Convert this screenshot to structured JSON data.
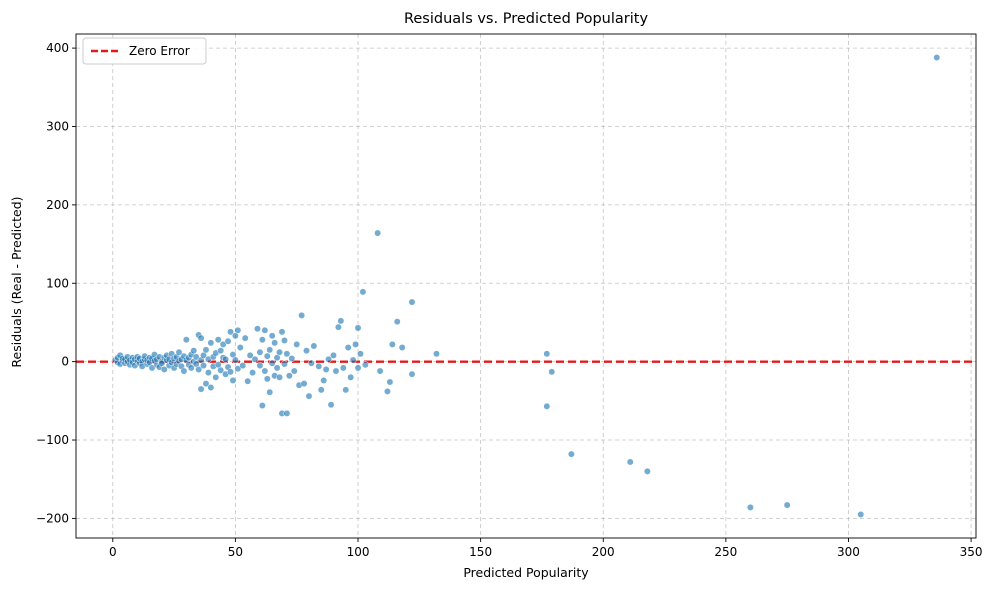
{
  "chart_data": {
    "type": "scatter",
    "title": "Residuals vs. Predicted Popularity",
    "xlabel": "Predicted Popularity",
    "ylabel": "Residuals (Real - Predicted)",
    "xlim": [
      -15,
      352
    ],
    "ylim": [
      -225,
      418
    ],
    "xticks": [
      0,
      50,
      100,
      150,
      200,
      250,
      300,
      350
    ],
    "yticks": [
      -200,
      -100,
      0,
      100,
      200,
      300,
      400
    ],
    "xtick_labels": [
      "0",
      "50",
      "100",
      "150",
      "200",
      "250",
      "300",
      "350"
    ],
    "ytick_labels": [
      "−200",
      "−100",
      "0",
      "100",
      "200",
      "300",
      "400"
    ],
    "grid": true,
    "grid_style": "dashed",
    "point_color": "#1f77b4",
    "reference_line": {
      "y": 0,
      "label": "Zero Error",
      "color": "#e41a1c",
      "style": "dashed"
    },
    "legend": {
      "position": "top-left",
      "entries": [
        "Zero Error"
      ]
    },
    "points": [
      [
        1,
        2
      ],
      [
        2,
        -1
      ],
      [
        2,
        5
      ],
      [
        3,
        8
      ],
      [
        3,
        -3
      ],
      [
        4,
        1
      ],
      [
        4,
        4
      ],
      [
        5,
        -2
      ],
      [
        5,
        3
      ],
      [
        6,
        0
      ],
      [
        6,
        6
      ],
      [
        7,
        -4
      ],
      [
        7,
        2
      ],
      [
        8,
        5
      ],
      [
        8,
        -1
      ],
      [
        9,
        3
      ],
      [
        9,
        -5
      ],
      [
        10,
        1
      ],
      [
        10,
        6
      ],
      [
        11,
        -2
      ],
      [
        11,
        4
      ],
      [
        12,
        0
      ],
      [
        12,
        -6
      ],
      [
        13,
        3
      ],
      [
        13,
        7
      ],
      [
        14,
        -3
      ],
      [
        14,
        2
      ],
      [
        15,
        5
      ],
      [
        15,
        -1
      ],
      [
        16,
        -8
      ],
      [
        16,
        4
      ],
      [
        17,
        1
      ],
      [
        17,
        9
      ],
      [
        18,
        -4
      ],
      [
        18,
        3
      ],
      [
        19,
        -7
      ],
      [
        19,
        6
      ],
      [
        20,
        0
      ],
      [
        20,
        -2
      ],
      [
        21,
        5
      ],
      [
        21,
        -10
      ],
      [
        22,
        2
      ],
      [
        22,
        8
      ],
      [
        23,
        -5
      ],
      [
        23,
        3
      ],
      [
        24,
        -1
      ],
      [
        24,
        10
      ],
      [
        25,
        -8
      ],
      [
        25,
        4
      ],
      [
        26,
        6
      ],
      [
        26,
        -3
      ],
      [
        27,
        1
      ],
      [
        27,
        12
      ],
      [
        28,
        -6
      ],
      [
        28,
        3
      ],
      [
        29,
        7
      ],
      [
        29,
        -12
      ],
      [
        30,
        2
      ],
      [
        30,
        28
      ],
      [
        31,
        -4
      ],
      [
        31,
        5
      ],
      [
        32,
        9
      ],
      [
        32,
        -8
      ],
      [
        33,
        0
      ],
      [
        33,
        14
      ],
      [
        34,
        -3
      ],
      [
        34,
        6
      ],
      [
        35,
        34
      ],
      [
        35,
        -10
      ],
      [
        36,
        2
      ],
      [
        36,
        30
      ],
      [
        36,
        -35
      ],
      [
        37,
        -5
      ],
      [
        37,
        8
      ],
      [
        38,
        -28
      ],
      [
        38,
        15
      ],
      [
        39,
        3
      ],
      [
        39,
        -14
      ],
      [
        40,
        -33
      ],
      [
        40,
        24
      ],
      [
        41,
        6
      ],
      [
        41,
        -6
      ],
      [
        42,
        -20
      ],
      [
        42,
        11
      ],
      [
        43,
        28
      ],
      [
        43,
        -4
      ],
      [
        44,
        14
      ],
      [
        44,
        -11
      ],
      [
        45,
        5
      ],
      [
        45,
        22
      ],
      [
        46,
        -16
      ],
      [
        46,
        3
      ],
      [
        47,
        26
      ],
      [
        47,
        -7
      ],
      [
        48,
        38
      ],
      [
        48,
        -13
      ],
      [
        49,
        9
      ],
      [
        49,
        -24
      ],
      [
        50,
        33
      ],
      [
        50,
        2
      ],
      [
        51,
        40
      ],
      [
        51,
        -9
      ],
      [
        52,
        18
      ],
      [
        53,
        -5
      ],
      [
        54,
        30
      ],
      [
        55,
        -25
      ],
      [
        56,
        8
      ],
      [
        57,
        -14
      ],
      [
        58,
        3
      ],
      [
        59,
        42
      ],
      [
        60,
        12
      ],
      [
        60,
        -5
      ],
      [
        61,
        28
      ],
      [
        61,
        -56
      ],
      [
        62,
        40
      ],
      [
        62,
        -12
      ],
      [
        63,
        7
      ],
      [
        63,
        -22
      ],
      [
        64,
        15
      ],
      [
        64,
        -39
      ],
      [
        65,
        -2
      ],
      [
        65,
        33
      ],
      [
        66,
        -18
      ],
      [
        66,
        24
      ],
      [
        67,
        5
      ],
      [
        67,
        -8
      ],
      [
        68,
        -20
      ],
      [
        68,
        12
      ],
      [
        69,
        38
      ],
      [
        69,
        -66
      ],
      [
        70,
        27
      ],
      [
        70,
        -3
      ],
      [
        71,
        -66
      ],
      [
        71,
        10
      ],
      [
        72,
        -18
      ],
      [
        73,
        4
      ],
      [
        74,
        -12
      ],
      [
        75,
        22
      ],
      [
        76,
        -30
      ],
      [
        77,
        59
      ],
      [
        78,
        -28
      ],
      [
        79,
        14
      ],
      [
        80,
        -44
      ],
      [
        81,
        -2
      ],
      [
        82,
        20
      ],
      [
        84,
        -6
      ],
      [
        85,
        -36
      ],
      [
        86,
        -24
      ],
      [
        87,
        -10
      ],
      [
        88,
        3
      ],
      [
        89,
        -55
      ],
      [
        90,
        8
      ],
      [
        91,
        -12
      ],
      [
        92,
        44
      ],
      [
        93,
        52
      ],
      [
        94,
        -8
      ],
      [
        95,
        -36
      ],
      [
        96,
        18
      ],
      [
        97,
        -20
      ],
      [
        98,
        2
      ],
      [
        99,
        22
      ],
      [
        100,
        43
      ],
      [
        100,
        -8
      ],
      [
        101,
        10
      ],
      [
        102,
        89
      ],
      [
        103,
        -4
      ],
      [
        108,
        164
      ],
      [
        109,
        -12
      ],
      [
        112,
        -38
      ],
      [
        113,
        -26
      ],
      [
        114,
        22
      ],
      [
        116,
        51
      ],
      [
        118,
        18
      ],
      [
        122,
        76
      ],
      [
        122,
        -16
      ],
      [
        132,
        10
      ],
      [
        177,
        10
      ],
      [
        177,
        -57
      ],
      [
        179,
        -13
      ],
      [
        187,
        -118
      ],
      [
        211,
        -128
      ],
      [
        218,
        -140
      ],
      [
        260,
        -186
      ],
      [
        275,
        -183
      ],
      [
        305,
        -195
      ],
      [
        336,
        388
      ]
    ]
  }
}
